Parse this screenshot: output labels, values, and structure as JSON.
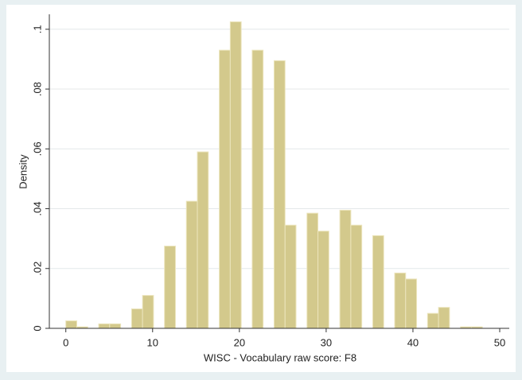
{
  "chart_data": {
    "type": "histogram",
    "x_label": "WISC - Vocabulary raw score: F8",
    "y_label": "Density",
    "bins": [
      0,
      1.263,
      2.526,
      3.789,
      5.053,
      6.316,
      7.579,
      8.842,
      10.105,
      11.368,
      12.632,
      13.895,
      15.158,
      16.421,
      17.684,
      18.947,
      20.211,
      21.474,
      22.737,
      24,
      25.263,
      26.526,
      27.789,
      29.053,
      30.316,
      31.579,
      32.842,
      34.105,
      35.368,
      36.632,
      37.895,
      39.158,
      40.421,
      41.684,
      42.947,
      44.211,
      45.474,
      46.737,
      48
    ],
    "values": [
      0.0025,
      0.0005,
      0,
      0.0015,
      0.0015,
      0,
      0.0065,
      0.011,
      0,
      0.0275,
      0,
      0.0425,
      0.059,
      0,
      0.093,
      0.1025,
      0,
      0.093,
      0,
      0.0895,
      0.0345,
      0,
      0.0385,
      0.0325,
      0,
      0.0395,
      0.0345,
      0,
      0.031,
      0,
      0.0185,
      0.0165,
      0,
      0.005,
      0.007,
      0,
      0.0005,
      0.0005
    ],
    "color": "#d3c98c",
    "xlim": [
      -1.9,
      51.1
    ],
    "ylim": [
      0,
      0.105
    ],
    "xticks": [
      0,
      10,
      20,
      30,
      40,
      50
    ],
    "yticks": [
      0,
      {
        "value": 0.02,
        "label": ".02"
      },
      {
        "value": 0.04,
        "label": ".04"
      },
      {
        "value": 0.06,
        "label": ".06"
      },
      {
        "value": 0.08,
        "label": ".08"
      },
      {
        "value": 0.1,
        "label": ".1"
      }
    ],
    "grid": true
  }
}
